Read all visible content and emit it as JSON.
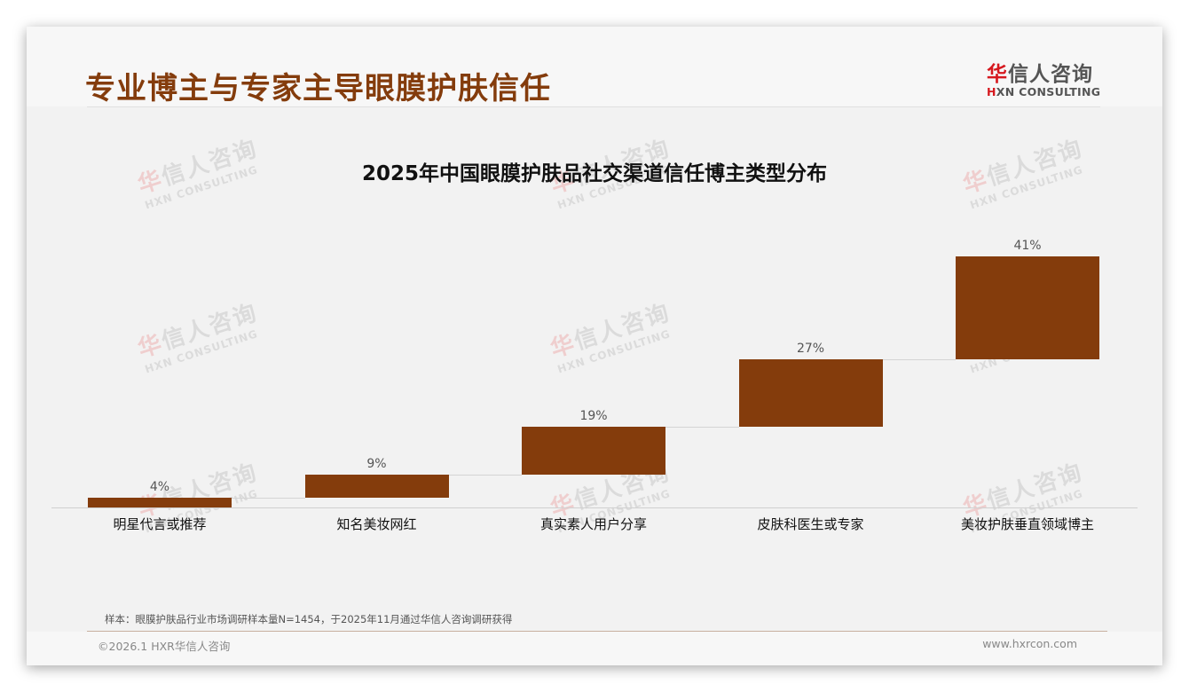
{
  "header": {
    "title": "专业博主与专家主导眼膜护肤信任",
    "logo": {
      "cn_accent": "华",
      "cn_rest": "信人咨询",
      "en_accent": "H",
      "en_rest": "XN CONSULTING"
    }
  },
  "watermark": {
    "cn_accent": "华",
    "cn_rest": "信人咨询",
    "en": "HXN CONSULTING"
  },
  "chart_data": {
    "type": "bar",
    "subtype": "waterfall",
    "title": "2025年中国眼膜护肤品社交渠道信任博主类型分布",
    "categories": [
      "明星代言或推荐",
      "知名美妆网红",
      "真实素人用户分享",
      "皮肤科医生或专家",
      "美妆护肤垂直领域博主"
    ],
    "values": [
      4,
      9,
      19,
      27,
      41
    ],
    "labels": [
      "4%",
      "9%",
      "19%",
      "27%",
      "41%"
    ],
    "cumulative_start": [
      0,
      4,
      13,
      32,
      59
    ],
    "cumulative_end": [
      4,
      13,
      32,
      59,
      100
    ],
    "xlabel": "",
    "ylabel": "",
    "ylim": [
      0,
      100
    ],
    "grid": false,
    "legend": "none",
    "bar_color": "#843c0c"
  },
  "footer": {
    "note": "样本：眼膜护肤品行业市场调研样本量N=1454，于2025年11月通过华信人咨询调研获得",
    "copyright": "©2026.1 HXR华信人咨询",
    "website": "www.hxrcon.com"
  }
}
